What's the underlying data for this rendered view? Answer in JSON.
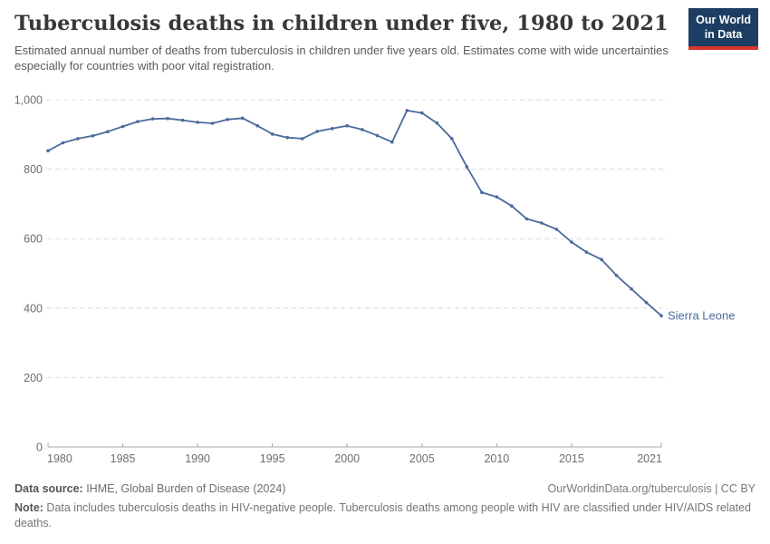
{
  "logo": {
    "line1": "Our World",
    "line2": "in Data"
  },
  "colors": {
    "line": "#4c6a9c",
    "logo_bg": "#1d3d63",
    "logo_accent": "#d7352b",
    "gridline": "#dcdcdc",
    "axis_text": "#6e6e6e"
  },
  "chart_data": {
    "type": "line",
    "title": "Tuberculosis deaths in children under five, 1980 to 2021",
    "subtitle": "Estimated annual number of deaths from tuberculosis in children under five years old. Estimates come with wide uncertainties especially for countries with poor vital registration.",
    "xlabel": "",
    "ylabel": "",
    "ylim": [
      0,
      1000
    ],
    "yticks": [
      0,
      200,
      400,
      600,
      800,
      1000
    ],
    "ytick_labels": [
      "0",
      "200",
      "400",
      "600",
      "800",
      "1,000"
    ],
    "xticks": [
      1980,
      1985,
      1990,
      1995,
      2000,
      2005,
      2010,
      2015,
      2021
    ],
    "xtick_labels": [
      "1980",
      "1985",
      "1990",
      "1995",
      "2000",
      "2005",
      "2010",
      "2015",
      "2021"
    ],
    "grid": "horizontal dashed",
    "legend_position": "line-end label",
    "x": [
      1980,
      1981,
      1982,
      1983,
      1984,
      1985,
      1986,
      1987,
      1988,
      1989,
      1990,
      1991,
      1992,
      1993,
      1994,
      1995,
      1996,
      1997,
      1998,
      1999,
      2000,
      2001,
      2002,
      2003,
      2004,
      2005,
      2006,
      2007,
      2008,
      2009,
      2010,
      2011,
      2012,
      2013,
      2014,
      2015,
      2016,
      2017,
      2018,
      2019,
      2020,
      2021
    ],
    "series": [
      {
        "name": "Sierra Leone",
        "color": "#4c6a9c",
        "values": [
          853,
          876,
          888,
          896,
          908,
          923,
          937,
          945,
          946,
          941,
          935,
          932,
          943,
          947,
          925,
          901,
          891,
          888,
          909,
          917,
          925,
          914,
          897,
          878,
          969,
          962,
          933,
          888,
          807,
          733,
          720,
          694,
          657,
          645,
          627,
          590,
          561,
          540,
          494,
          455,
          416,
          378
        ]
      }
    ]
  },
  "footer": {
    "source_label": "Data source:",
    "source_value": " IHME, Global Burden of Disease (2024)",
    "link": "OurWorldinData.org/tuberculosis | CC BY",
    "note_label": "Note:",
    "note_value": " Data includes tuberculosis deaths in HIV-negative people. Tuberculosis deaths among people with HIV are classified under HIV/AIDS related deaths."
  }
}
